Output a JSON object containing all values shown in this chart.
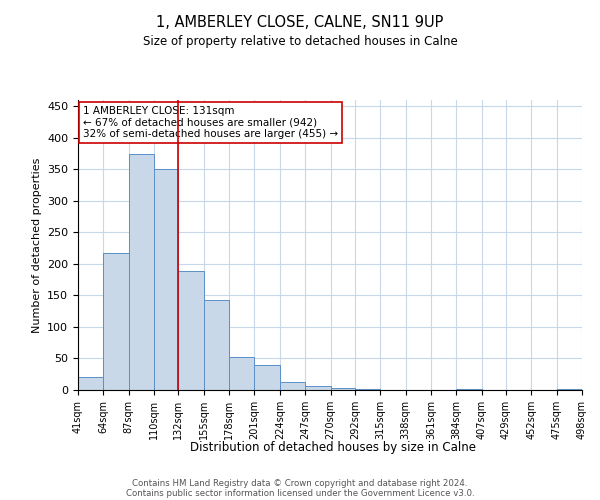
{
  "title": "1, AMBERLEY CLOSE, CALNE, SN11 9UP",
  "subtitle": "Size of property relative to detached houses in Calne",
  "xlabel": "Distribution of detached houses by size in Calne",
  "ylabel": "Number of detached properties",
  "bar_color": "#c8d8e8",
  "bar_edge_color": "#5b8fc9",
  "background_color": "#ffffff",
  "grid_color": "#c8d8e8",
  "property_line_x": 132,
  "property_line_color": "#cc0000",
  "annotation_box_color": "#cc0000",
  "annotation_lines": [
    "1 AMBERLEY CLOSE: 131sqm",
    "← 67% of detached houses are smaller (942)",
    "32% of semi-detached houses are larger (455) →"
  ],
  "bin_edges": [
    41,
    64,
    87,
    110,
    132,
    155,
    178,
    201,
    224,
    247,
    270,
    292,
    315,
    338,
    361,
    384,
    407,
    429,
    452,
    475,
    498
  ],
  "bar_heights": [
    20,
    218,
    375,
    350,
    188,
    142,
    53,
    40,
    12,
    7,
    3,
    1,
    0,
    0,
    0,
    1,
    0,
    0,
    0,
    2
  ],
  "ylim": [
    0,
    460
  ],
  "yticks": [
    0,
    50,
    100,
    150,
    200,
    250,
    300,
    350,
    400,
    450
  ],
  "footnote1": "Contains HM Land Registry data © Crown copyright and database right 2024.",
  "footnote2": "Contains public sector information licensed under the Government Licence v3.0."
}
